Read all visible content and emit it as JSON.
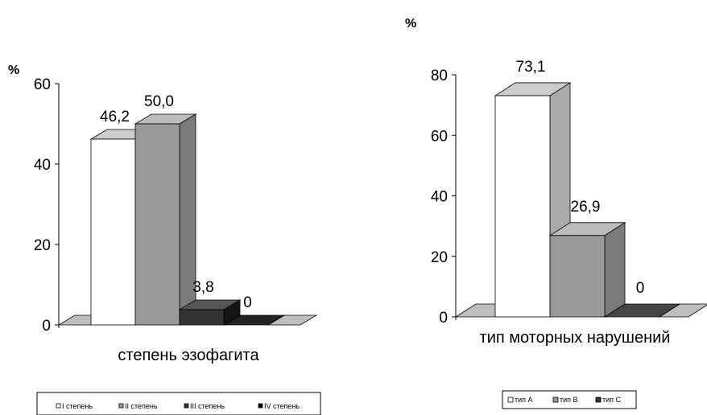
{
  "chart_data": [
    {
      "type": "bar",
      "style": "3d",
      "unit_label": "%",
      "xlabel": "степень эзофагита",
      "ylim": [
        0,
        60
      ],
      "yticks": [
        0,
        20,
        40,
        60
      ],
      "categories": [
        "I степень",
        "II степень",
        "III степень",
        "IV степень"
      ],
      "values": [
        46.2,
        50.0,
        3.8,
        0
      ],
      "value_labels": [
        "46,2",
        "50,0",
        "3,8",
        "0"
      ],
      "colors": [
        "#ffffff",
        "#999999",
        "#333333",
        "#000000"
      ],
      "legend": {
        "position": "bottom",
        "entries": [
          "I степень",
          "II степень",
          "III степень",
          "IV степень"
        ]
      },
      "grid": false
    },
    {
      "type": "bar",
      "style": "3d",
      "unit_label": "%",
      "xlabel": "тип моторных нарушений",
      "ylim": [
        0,
        80
      ],
      "yticks": [
        0,
        20,
        40,
        60,
        80
      ],
      "categories": [
        "тип A",
        "тип B",
        "тип C"
      ],
      "values": [
        73.1,
        26.9,
        0
      ],
      "value_labels": [
        "73,1",
        "26,9",
        "0"
      ],
      "colors": [
        "#ffffff",
        "#999999",
        "#222222"
      ],
      "legend": {
        "position": "bottom",
        "entries": [
          "тип A",
          "тип B",
          "тип C"
        ]
      },
      "grid": false
    }
  ]
}
